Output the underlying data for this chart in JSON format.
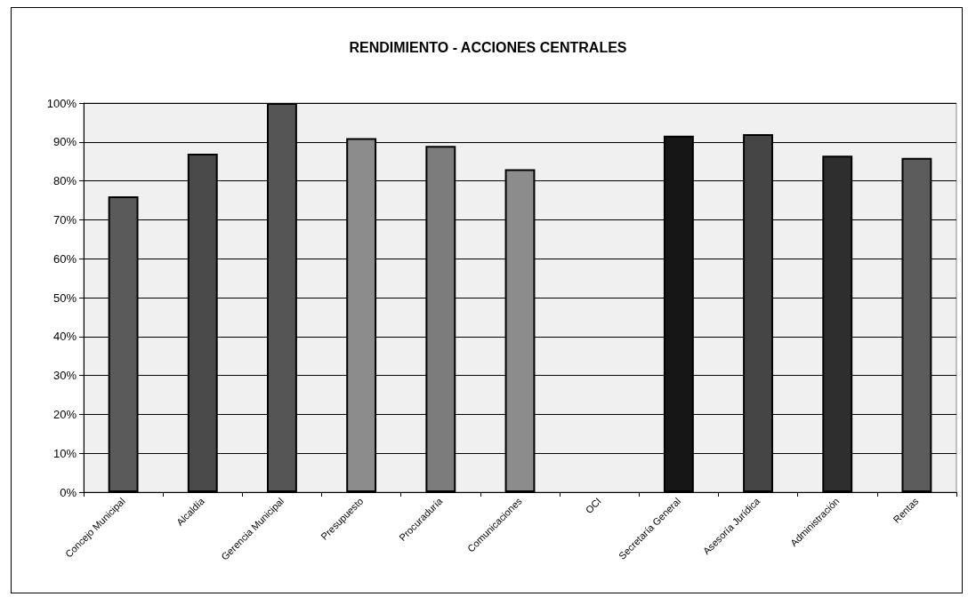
{
  "chart_data": {
    "type": "bar",
    "title": "RENDIMIENTO - ACCIONES CENTRALES",
    "categories": [
      "Concejo Municipal",
      "Alcaldía",
      "Gerencia Municipal",
      "Presupuesto",
      "Procuraduría",
      "Comunicaciones",
      "OCI",
      "Secretaría General",
      "Asesoría Jurídica",
      "Administración",
      "Rentas"
    ],
    "values": [
      76,
      87,
      100,
      91,
      89,
      83,
      null,
      91.6,
      92,
      86.5,
      85.9
    ],
    "colors": [
      "#5a5a5a",
      "#4a4a4a",
      "#555555",
      "#8c8c8c",
      "#7c7c7c",
      "#8c8c8c",
      null,
      "#161616",
      "#454545",
      "#2e2e2e",
      "#5c5c5c"
    ],
    "ylim": [
      0,
      100
    ],
    "yticks": [
      {
        "value": 0,
        "label": "0%"
      },
      {
        "value": 10,
        "label": "10%"
      },
      {
        "value": 20,
        "label": "20%"
      },
      {
        "value": 30,
        "label": "30%"
      },
      {
        "value": 40,
        "label": "40%"
      },
      {
        "value": 50,
        "label": "50%"
      },
      {
        "value": 60,
        "label": "60%"
      },
      {
        "value": 70,
        "label": "70%"
      },
      {
        "value": 80,
        "label": "80%"
      },
      {
        "value": 90,
        "label": "90%"
      },
      {
        "value": 100,
        "label": "100%"
      }
    ],
    "grid": "y"
  }
}
